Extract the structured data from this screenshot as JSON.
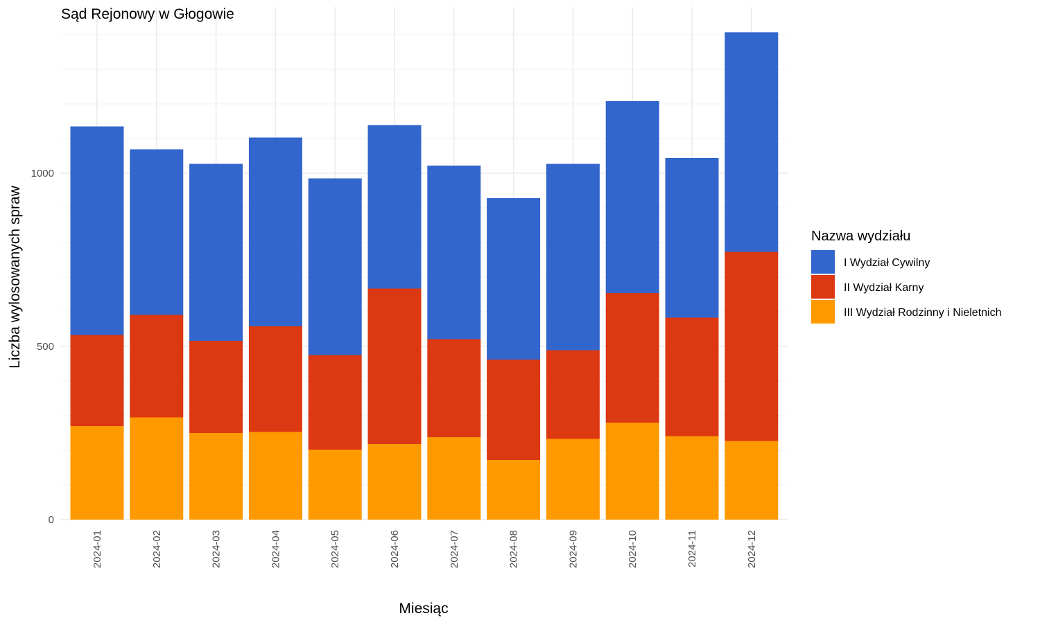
{
  "chart_data": {
    "type": "bar",
    "stacked": true,
    "title": "Sąd Rejonowy w Głogowie",
    "xlabel": "Miesiąc",
    "ylabel": "Liczba wylosowanych spraw",
    "ylim": [
      0,
      1480
    ],
    "yticks": [
      0,
      500,
      1000
    ],
    "grid": true,
    "legend_position": "right",
    "legend_title": "Nazwa wydziału",
    "categories": [
      "2024-01",
      "2024-02",
      "2024-03",
      "2024-04",
      "2024-05",
      "2024-06",
      "2024-07",
      "2024-08",
      "2024-09",
      "2024-10",
      "2024-11",
      "2024-12"
    ],
    "series": [
      {
        "name": "III Wydział Rodzinny i Nieletnich",
        "color": "#FF9900",
        "values": [
          270,
          295,
          250,
          253,
          202,
          218,
          238,
          172,
          233,
          280,
          241,
          227
        ]
      },
      {
        "name": "II Wydział Karny",
        "color": "#DC3912",
        "values": [
          263,
          296,
          266,
          305,
          273,
          449,
          283,
          290,
          256,
          374,
          342,
          546
        ]
      },
      {
        "name": "I Wydział Cywilny",
        "color": "#3366CC",
        "values": [
          602,
          478,
          511,
          545,
          510,
          472,
          501,
          466,
          538,
          554,
          461,
          634
        ]
      }
    ],
    "legend_order": [
      "I Wydział Cywilny",
      "II Wydział Karny",
      "III Wydział Rodzinny i Nieletnich"
    ]
  }
}
